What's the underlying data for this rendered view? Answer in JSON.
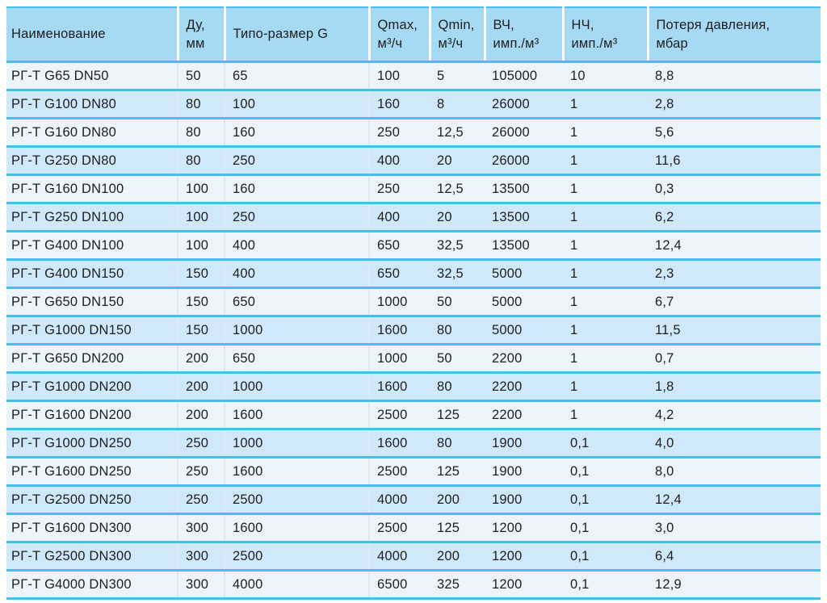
{
  "colors": {
    "header_bg": "#a6d9f4",
    "row_light": "#edf5fc",
    "row_blue": "#cfe9fb",
    "separator_line": "#44bfee",
    "header_divider": "#ffffff",
    "body_column_line": "#dde9f2",
    "text": "#1e1e1e"
  },
  "table": {
    "columns": [
      {
        "label": "Наименование"
      },
      {
        "label": "Ду,\nмм"
      },
      {
        "label": "Типо-размер G"
      },
      {
        "label": "Qmax,\nм³/ч"
      },
      {
        "label": "Qmin,\nм³/ч"
      },
      {
        "label": "ВЧ,\nимп./м³"
      },
      {
        "label": "НЧ,\nимп./м³"
      },
      {
        "label": "Потеря давления,\nмбар"
      }
    ],
    "rows": [
      [
        "РГ-Т G65 DN50",
        "50",
        "65",
        "100",
        "5",
        "105000",
        "10",
        "8,8"
      ],
      [
        "РГ-Т G100 DN80",
        "80",
        "100",
        "160",
        "8",
        "26000",
        "1",
        "2,8"
      ],
      [
        "РГ-Т G160 DN80",
        "80",
        "160",
        "250",
        "12,5",
        "26000",
        "1",
        "5,6"
      ],
      [
        "РГ-Т G250 DN80",
        "80",
        "250",
        "400",
        "20",
        "26000",
        "1",
        "11,6"
      ],
      [
        "РГ-Т G160 DN100",
        "100",
        "160",
        "250",
        "12,5",
        "13500",
        "1",
        "0,3"
      ],
      [
        "РГ-Т G250 DN100",
        "100",
        "250",
        "400",
        "20",
        "13500",
        "1",
        "6,2"
      ],
      [
        "РГ-Т G400 DN100",
        "100",
        "400",
        "650",
        "32,5",
        "13500",
        "1",
        "12,4"
      ],
      [
        "РГ-Т G400 DN150",
        "150",
        "400",
        "650",
        "32,5",
        "5000",
        "1",
        "2,3"
      ],
      [
        "РГ-Т G650 DN150",
        "150",
        "650",
        "1000",
        "50",
        "5000",
        "1",
        "6,7"
      ],
      [
        "РГ-Т G1000 DN150",
        "150",
        "1000",
        "1600",
        "80",
        "5000",
        "1",
        "11,5"
      ],
      [
        "РГ-Т G650 DN200",
        "200",
        "650",
        "1000",
        "50",
        "2200",
        "1",
        "0,7"
      ],
      [
        "РГ-Т G1000 DN200",
        "200",
        "1000",
        "1600",
        "80",
        "2200",
        "1",
        "1,8"
      ],
      [
        "РГ-Т G1600 DN200",
        "200",
        "1600",
        "2500",
        "125",
        "2200",
        "1",
        "4,2"
      ],
      [
        "РГ-Т G1000 DN250",
        "250",
        "1000",
        "1600",
        "80",
        "1900",
        "0,1",
        "4,0"
      ],
      [
        "РГ-Т G1600 DN250",
        "250",
        "1600",
        "2500",
        "125",
        "1900",
        "0,1",
        "8,0"
      ],
      [
        "РГ-Т G2500 DN250",
        "250",
        "2500",
        "4000",
        "200",
        "1900",
        "0,1",
        "12,4"
      ],
      [
        "РГ-Т G1600 DN300",
        "300",
        "1600",
        "2500",
        "125",
        "1200",
        "0,1",
        "3,0"
      ],
      [
        "РГ-Т G2500 DN300",
        "300",
        "2500",
        "4000",
        "200",
        "1200",
        "0,1",
        "6,4"
      ],
      [
        "РГ-Т G4000 DN300",
        "300",
        "4000",
        "6500",
        "325",
        "1200",
        "0,1",
        "12,9"
      ]
    ]
  }
}
